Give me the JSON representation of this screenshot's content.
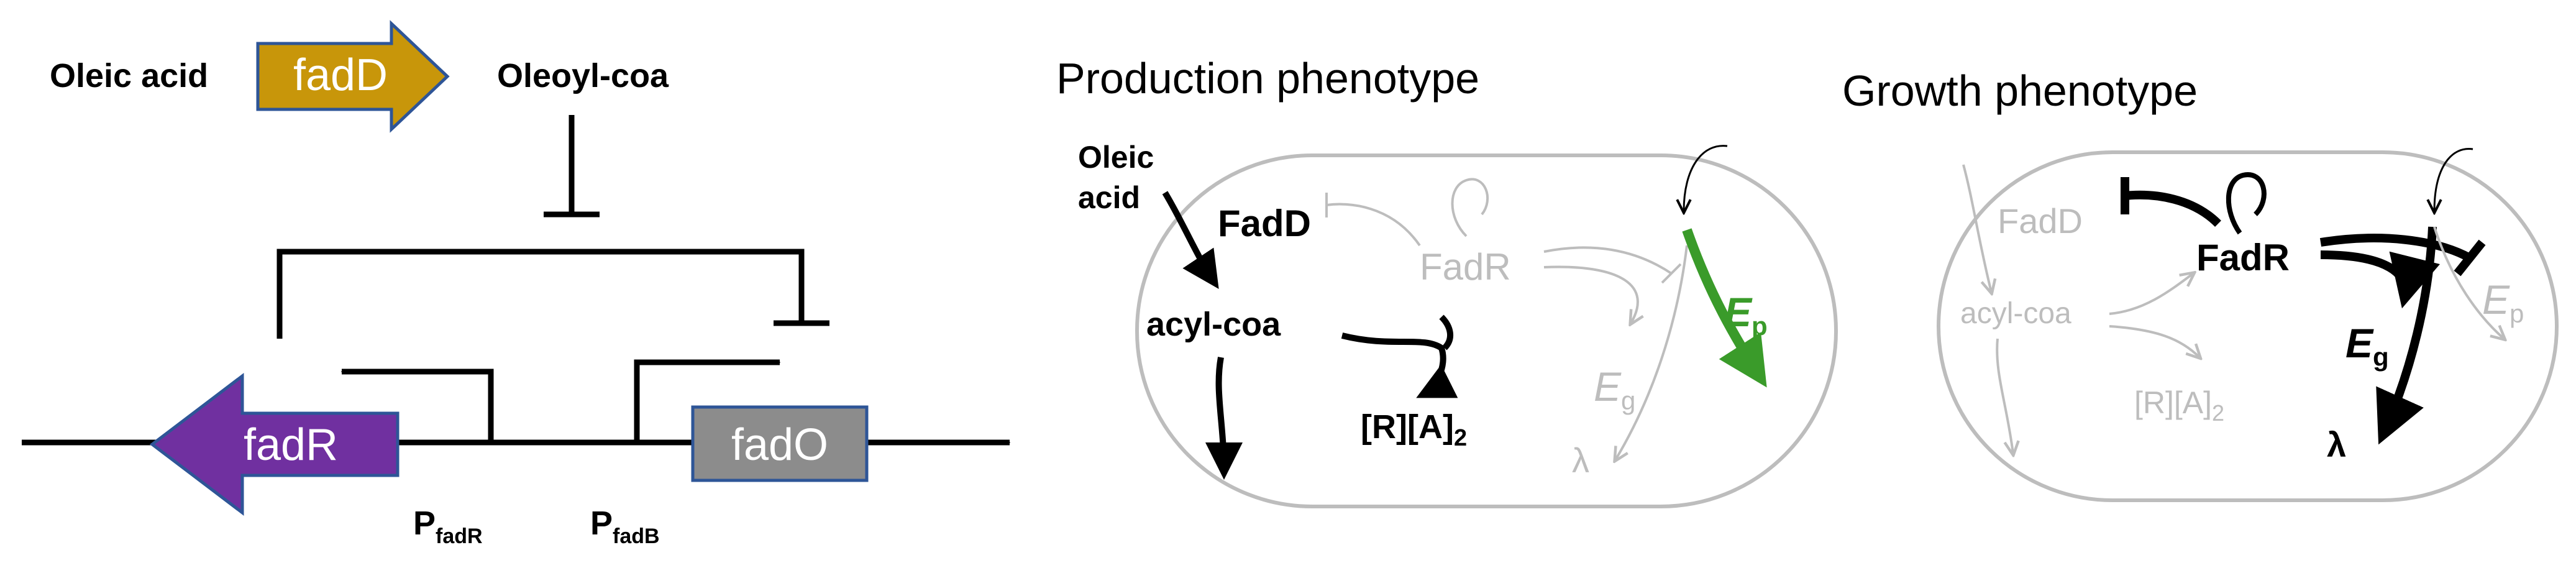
{
  "left_panel": {
    "substrate": "Oleic acid",
    "enzyme_gene": "fadD",
    "product": "Oleoyl-coa",
    "regulator_gene": "fadR",
    "target_gene": "fadO",
    "promoter_1": {
      "main": "P",
      "sub": "fadR"
    },
    "promoter_2": {
      "main": "P",
      "sub": "fadB"
    },
    "colors": {
      "fadD": "#C8960A",
      "fadR": "#7030A0",
      "fadO": "#8C8C8C"
    }
  },
  "production_panel": {
    "title": "Production phenotype",
    "oleic_1": "Oleic",
    "oleic_2": "acid",
    "fadD": "FadD",
    "fadR": "FadR",
    "acyl_coa": "acyl-coa",
    "ra2": {
      "main": "[R][A]",
      "sub": "2"
    },
    "eg": {
      "main": "E",
      "sub": "g"
    },
    "ep": {
      "main": "E",
      "sub": "p"
    },
    "lambda": "λ",
    "colors": {
      "active": "#000000",
      "inactive": "#BDBDBD",
      "product": "#3A9B2A"
    }
  },
  "growth_panel": {
    "title": "Growth phenotype",
    "fadD": "FadD",
    "fadR": "FadR",
    "acyl_coa": "acyl-coa",
    "ra2": {
      "main": "[R][A]",
      "sub": "2"
    },
    "eg": {
      "main": "E",
      "sub": "g"
    },
    "ep": {
      "main": "E",
      "sub": "p"
    },
    "lambda": "λ",
    "colors": {
      "active": "#000000",
      "inactive": "#BDBDBD"
    }
  }
}
